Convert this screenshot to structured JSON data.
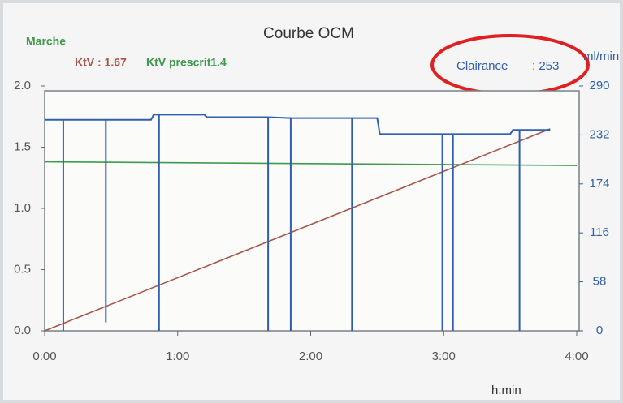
{
  "chart_data": {
    "type": "line",
    "title": "Courbe OCM",
    "status": "Marche",
    "clairance_value": ": 253",
    "y2_unit": "ml/min",
    "x_label": "h:min",
    "xlim": [
      0,
      4
    ],
    "xticks": [
      {
        "value": 0,
        "label": "0:00"
      },
      {
        "value": 1,
        "label": "1:00"
      },
      {
        "value": 2,
        "label": "2:00"
      },
      {
        "value": 3,
        "label": "3:00"
      },
      {
        "value": 4,
        "label": "4:00"
      }
    ],
    "ylim": [
      0,
      2
    ],
    "yticks": [
      {
        "value": 0,
        "label": "0.0"
      },
      0.5,
      {
        "value": 1,
        "label": "1.0"
      },
      1.5,
      {
        "value": 2,
        "label": "2.0"
      }
    ],
    "y2lim": [
      0,
      290
    ],
    "y2ticks": [
      0,
      58,
      116,
      174,
      232,
      290
    ],
    "series": [
      {
        "name": "KtV : 1.67",
        "color": "#a8554a",
        "x": [
          0,
          3.8
        ],
        "values": [
          0,
          1.65
        ]
      },
      {
        "name": "KtV prescrit1.4",
        "color": "#3e9a4c",
        "x": [
          0,
          4
        ],
        "values": [
          1.38,
          1.35
        ]
      },
      {
        "name": "Clairance",
        "color": "#2f5fae",
        "axis": "y2",
        "x": [
          0,
          0.14,
          0.14,
          0.14,
          0.46,
          0.46,
          0.46,
          0.8,
          0.82,
          0.86,
          0.86,
          0.86,
          1.2,
          1.22,
          1.68,
          1.68,
          1.68,
          1.85,
          1.85,
          1.85,
          2.31,
          2.31,
          2.31,
          2.5,
          2.52,
          2.99,
          2.99,
          2.99,
          3.07,
          3.07,
          3.07,
          3.5,
          3.52,
          3.57,
          3.57,
          3.57,
          3.8
        ],
        "values": [
          250,
          250,
          0,
          250,
          250,
          10,
          250,
          250,
          256,
          256,
          0,
          256,
          256,
          253,
          253,
          0,
          253,
          252,
          0,
          252,
          252,
          0,
          252,
          252,
          233,
          233,
          0,
          233,
          233,
          0,
          233,
          233,
          238,
          238,
          0,
          238,
          238
        ]
      }
    ]
  }
}
